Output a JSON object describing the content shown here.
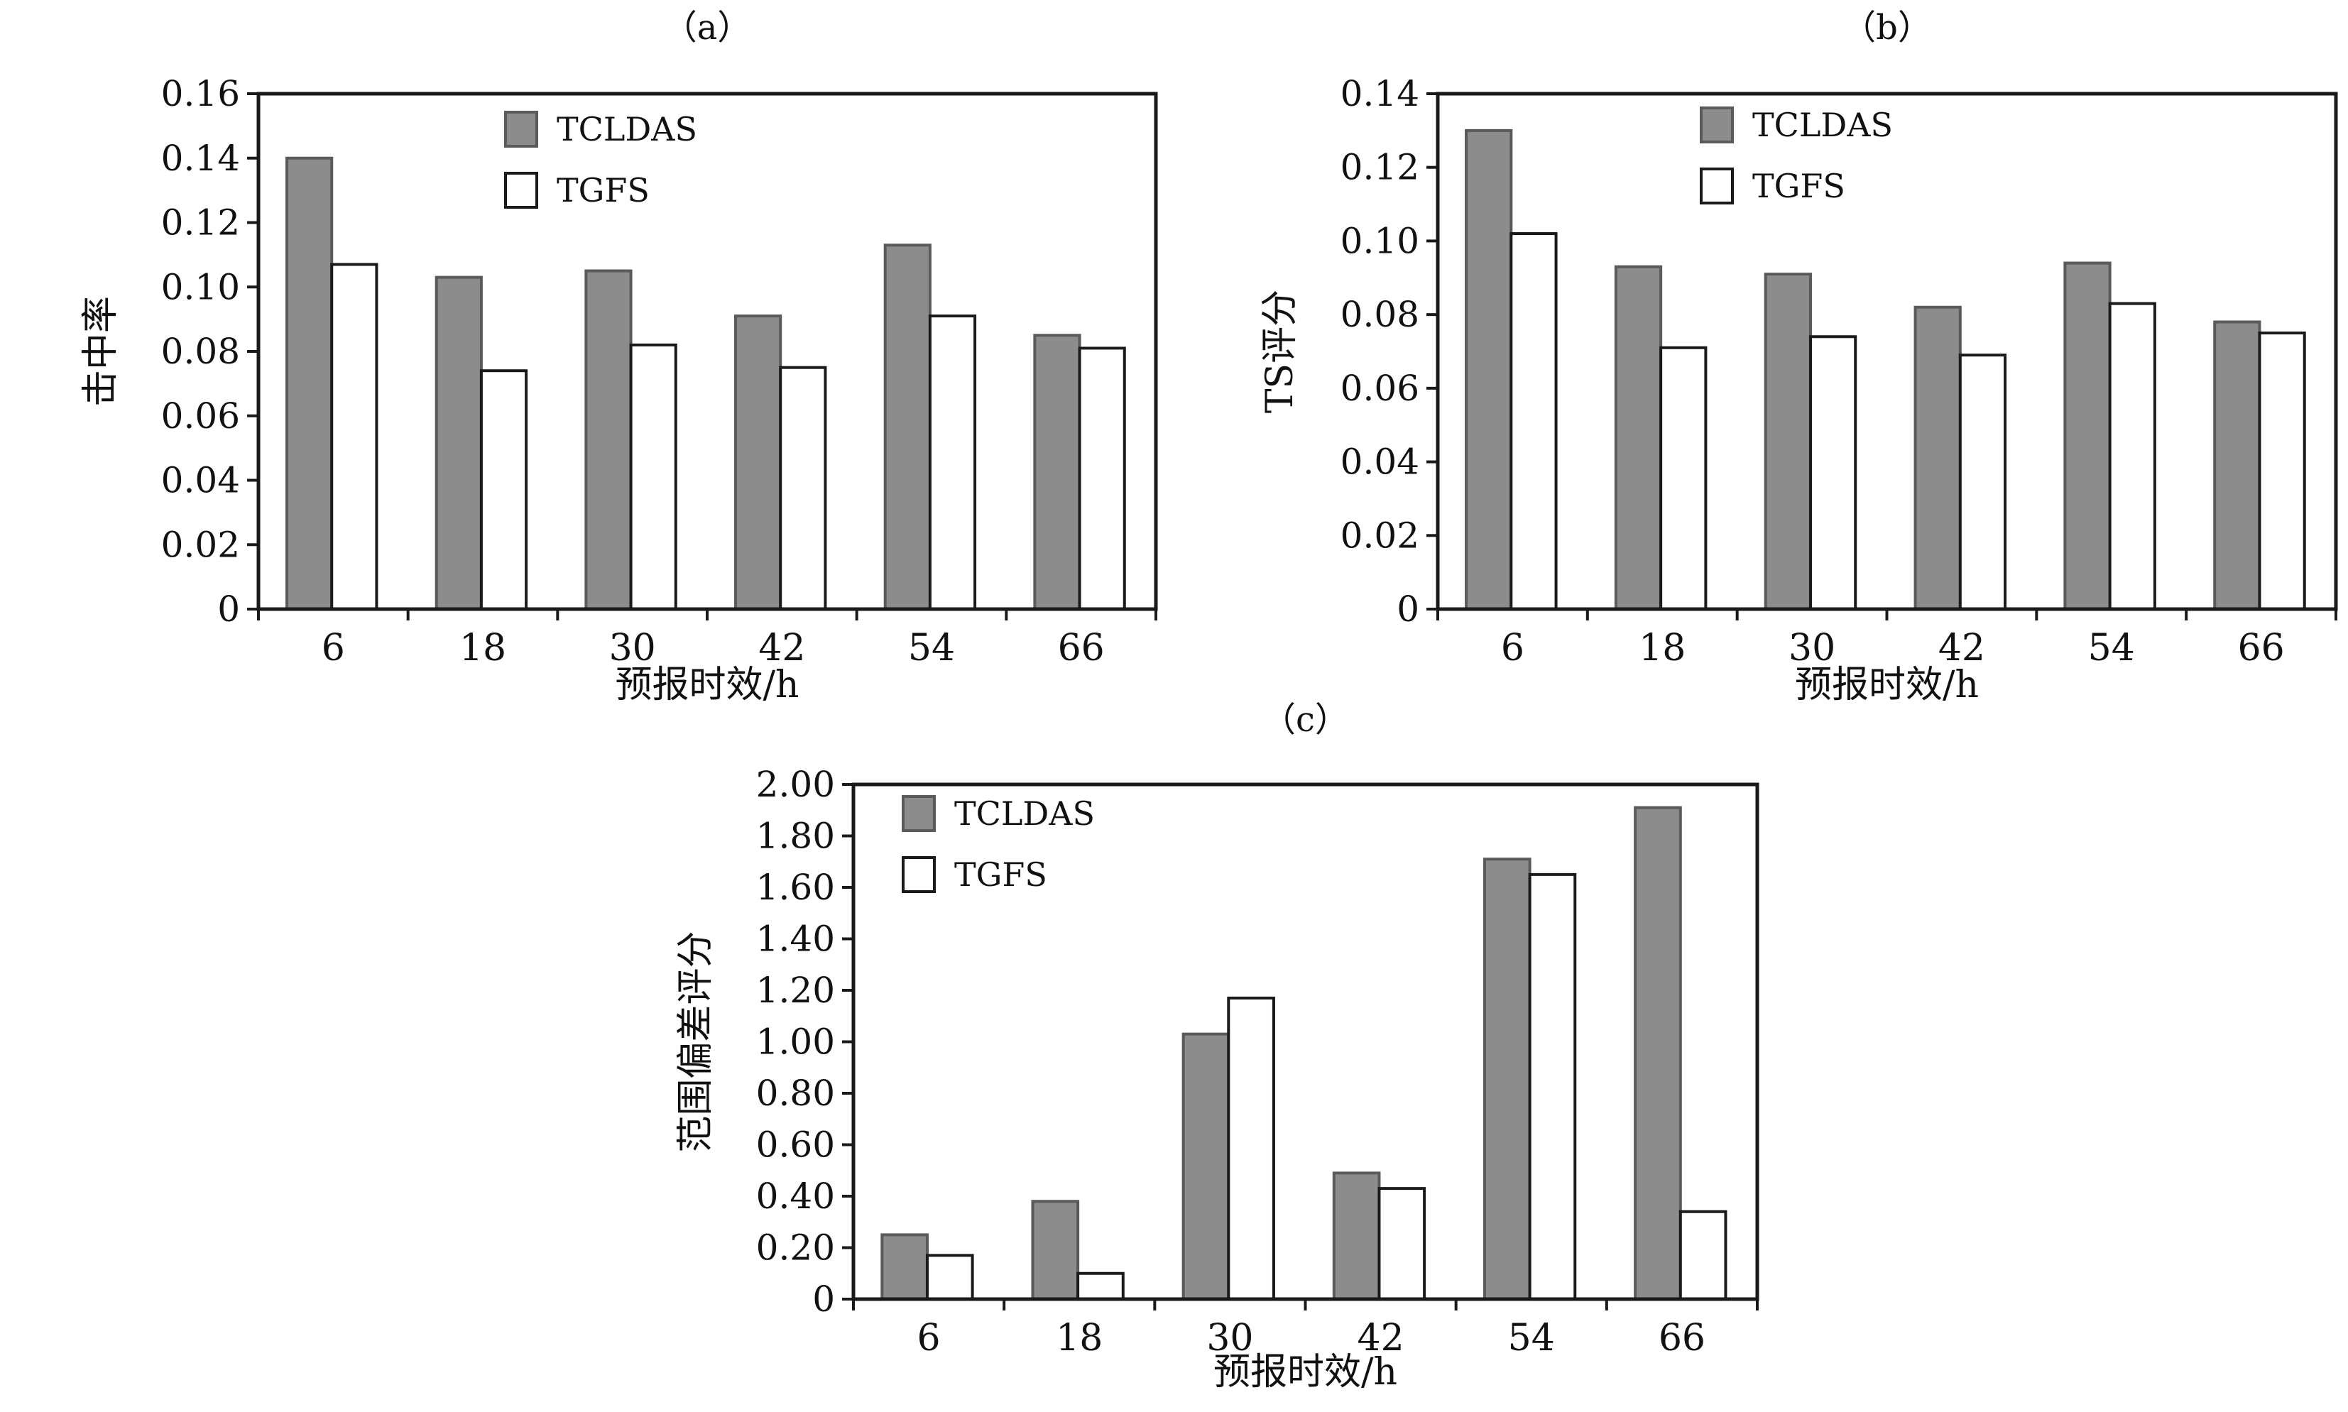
{
  "figure": {
    "x_axis_label": "预报时效/h",
    "legend_labels": [
      "TCLDAS",
      "TGFS"
    ],
    "colors": {
      "TCLDAS": "#8c8c8c",
      "TGFS": "#ffffff",
      "stroke": "#1a1a1a"
    }
  },
  "chart_data": [
    {
      "type": "bar",
      "panel_label": "（a）",
      "ylabel": "击中率",
      "xlabel": "预报时效/h",
      "categories": [
        "6",
        "18",
        "30",
        "42",
        "54",
        "66"
      ],
      "ylim": [
        0,
        0.16
      ],
      "yticks": [
        "0",
        "0.02",
        "0.04",
        "0.06",
        "0.08",
        "0.10",
        "0.12",
        "0.14",
        "0.16"
      ],
      "series": [
        {
          "name": "TCLDAS",
          "values": [
            0.14,
            0.103,
            0.105,
            0.091,
            0.113,
            0.085
          ]
        },
        {
          "name": "TGFS",
          "values": [
            0.107,
            0.074,
            0.082,
            0.075,
            0.091,
            0.081
          ]
        }
      ],
      "legend": "top-center"
    },
    {
      "type": "bar",
      "panel_label": "（b）",
      "ylabel": "TS评分",
      "xlabel": "预报时效/h",
      "categories": [
        "6",
        "18",
        "30",
        "42",
        "54",
        "66"
      ],
      "ylim": [
        0,
        0.14
      ],
      "yticks": [
        "0",
        "0.02",
        "0.04",
        "0.06",
        "0.08",
        "0.10",
        "0.12",
        "0.14"
      ],
      "series": [
        {
          "name": "TCLDAS",
          "values": [
            0.13,
            0.093,
            0.091,
            0.082,
            0.094,
            0.078
          ]
        },
        {
          "name": "TGFS",
          "values": [
            0.102,
            0.071,
            0.074,
            0.069,
            0.083,
            0.075
          ]
        }
      ],
      "legend": "top-center"
    },
    {
      "type": "bar",
      "panel_label": "（c）",
      "ylabel": "范围偏差评分",
      "xlabel": "预报时效/h",
      "categories": [
        "6",
        "18",
        "30",
        "42",
        "54",
        "66"
      ],
      "ylim": [
        0,
        2.0
      ],
      "yticks": [
        "0",
        "0.20",
        "0.40",
        "0.60",
        "0.80",
        "1.00",
        "1.20",
        "1.40",
        "1.60",
        "1.80",
        "2.00"
      ],
      "series": [
        {
          "name": "TCLDAS",
          "values": [
            0.25,
            0.38,
            1.03,
            0.49,
            1.71,
            1.91
          ]
        },
        {
          "name": "TGFS",
          "values": [
            0.17,
            0.1,
            1.17,
            0.43,
            1.65,
            0.34
          ]
        }
      ],
      "legend": "top-left"
    }
  ]
}
